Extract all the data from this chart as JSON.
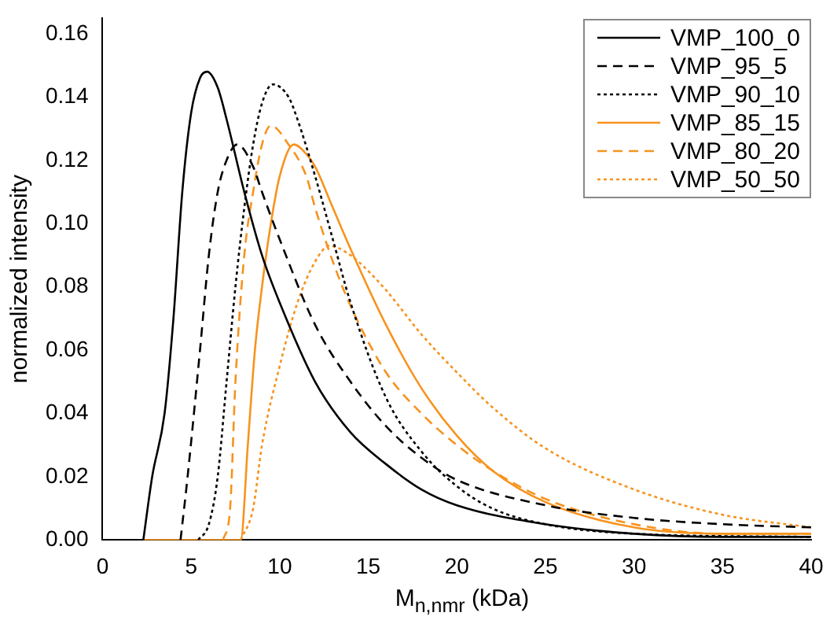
{
  "chart_data": {
    "type": "line",
    "xlabel": "M$_{n,nmr}$ (kDa)",
    "ylabel": "normalized intensity",
    "xlim": [
      0,
      40
    ],
    "xticks": [
      0,
      5,
      10,
      15,
      20,
      25,
      30,
      35,
      40
    ],
    "ylim": [
      0,
      0.165
    ],
    "yticks": [
      {
        "value": 0,
        "label": "0.00"
      },
      {
        "value": 0.02,
        "label": "0.02"
      },
      {
        "value": 0.04,
        "label": "0.04"
      },
      {
        "value": 0.06,
        "label": "0.06"
      },
      {
        "value": 0.08,
        "label": "0.08"
      },
      {
        "value": 0.1,
        "label": "0.10"
      },
      {
        "value": 0.12,
        "label": "0.12"
      },
      {
        "value": 0.14,
        "label": "0.14"
      },
      {
        "value": 0.16,
        "label": "0.16"
      }
    ],
    "grid": false,
    "legend": "top right",
    "marker": "none",
    "series": [
      {
        "name": "VMP_100_0",
        "color": "#000000",
        "line_style": "solid",
        "x": [
          2.3,
          2.8,
          3.5,
          4,
          4.5,
          5,
          5.5,
          5.9,
          6.5,
          7,
          8,
          9,
          10,
          12,
          14,
          16,
          18,
          20,
          25,
          30,
          35,
          40
        ],
        "values": [
          0,
          0.02,
          0.04,
          0.07,
          0.11,
          0.135,
          0.146,
          0.148,
          0.143,
          0.133,
          0.11,
          0.09,
          0.075,
          0.05,
          0.034,
          0.024,
          0.016,
          0.011,
          0.005,
          0.002,
          0.001,
          0.001
        ]
      },
      {
        "name": "VMP_95_5",
        "color": "#000000",
        "line_style": "dashed",
        "x": [
          4.4,
          4.8,
          5.5,
          6,
          6.5,
          7,
          7.6,
          8.5,
          9,
          10,
          12,
          14,
          16,
          18,
          20,
          25,
          30,
          35,
          40
        ],
        "values": [
          0,
          0.02,
          0.06,
          0.09,
          0.11,
          0.12,
          0.125,
          0.118,
          0.11,
          0.095,
          0.068,
          0.05,
          0.036,
          0.026,
          0.019,
          0.011,
          0.007,
          0.005,
          0.004
        ]
      },
      {
        "name": "VMP_90_10",
        "color": "#000000",
        "line_style": "dotted",
        "x": [
          5.4,
          6,
          6.5,
          7,
          7.5,
          8,
          8.5,
          9,
          9.6,
          10.5,
          11,
          12,
          13,
          14,
          16,
          18,
          20,
          22,
          25,
          30,
          40
        ],
        "values": [
          0,
          0.005,
          0.02,
          0.05,
          0.08,
          0.105,
          0.125,
          0.138,
          0.144,
          0.14,
          0.133,
          0.115,
          0.095,
          0.075,
          0.045,
          0.028,
          0.017,
          0.01,
          0.005,
          0.002,
          0.001
        ]
      },
      {
        "name": "VMP_85_15",
        "color": "#f7931e",
        "line_style": "solid",
        "x": [
          2.3,
          7.8,
          8.2,
          8.6,
          9,
          9.5,
          10,
          10.8,
          11.5,
          12,
          13,
          14,
          16,
          18,
          20,
          22,
          25,
          30,
          35,
          40
        ],
        "values": [
          0,
          0,
          0.03,
          0.06,
          0.08,
          0.1,
          0.115,
          0.125,
          0.122,
          0.118,
          0.105,
          0.092,
          0.068,
          0.048,
          0.033,
          0.022,
          0.012,
          0.004,
          0.002,
          0.002
        ]
      },
      {
        "name": "VMP_80_20",
        "color": "#f7931e",
        "line_style": "dashed",
        "x": [
          6.8,
          7.2,
          7.5,
          8,
          8.5,
          9,
          9.5,
          10.5,
          11.5,
          12,
          13,
          14,
          16,
          18,
          20,
          22,
          25,
          30,
          35,
          40
        ],
        "values": [
          0,
          0.01,
          0.05,
          0.09,
          0.11,
          0.125,
          0.131,
          0.125,
          0.115,
          0.105,
          0.088,
          0.074,
          0.053,
          0.04,
          0.03,
          0.022,
          0.013,
          0.005,
          0.002,
          0.002
        ]
      },
      {
        "name": "VMP_50_50",
        "color": "#f7931e",
        "line_style": "dotted",
        "x": [
          7.8,
          8.5,
          9,
          10,
          11,
          12,
          12.8,
          14,
          15,
          16,
          18,
          20,
          22,
          25,
          30,
          35,
          40
        ],
        "values": [
          0,
          0.01,
          0.03,
          0.055,
          0.075,
          0.088,
          0.093,
          0.09,
          0.085,
          0.079,
          0.065,
          0.053,
          0.042,
          0.029,
          0.016,
          0.008,
          0.004
        ]
      }
    ]
  }
}
